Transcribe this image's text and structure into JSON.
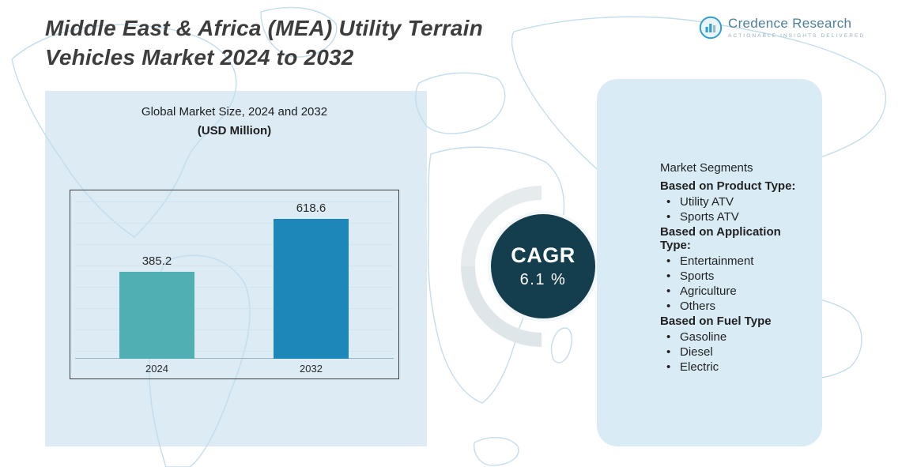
{
  "header": {
    "title_line1": "Middle East & Africa (MEA) Utility Terrain",
    "title_line2": "Vehicles Market 2024 to 2032",
    "logo": {
      "name": "Credence Research",
      "tagline": "Actionable Insights Delivered"
    }
  },
  "chart_heading": {
    "line1": "Global Market Size, 2024 and 2032",
    "line2": "(USD Million)"
  },
  "chart_data": {
    "type": "bar",
    "title": "Global Market Size, 2024 and 2032 (USD Million)",
    "categories": [
      "2024",
      "2032"
    ],
    "values": [
      385.2,
      618.6
    ],
    "data_labels": [
      "385.2",
      "618.6"
    ],
    "xlabel": "",
    "ylabel": "",
    "ylim": [
      0,
      700
    ],
    "grid": true,
    "legend": "none",
    "bar_colors": [
      "#4fafb3",
      "#1d87ba"
    ]
  },
  "cagr": {
    "label": "CAGR",
    "value": "6.1 %"
  },
  "segments": {
    "heading": "Market Segments",
    "groups": [
      {
        "title": "Based on Product Type:",
        "items": [
          "Utility ATV",
          "Sports ATV"
        ]
      },
      {
        "title": "Based on Application Type:",
        "items": [
          "Entertainment",
          "Sports",
          "Agriculture",
          "Others"
        ]
      },
      {
        "title": "Based on Fuel Type",
        "items": [
          "Gasoline",
          "Diesel",
          "Electric"
        ]
      }
    ]
  },
  "colors": {
    "bar_2024": "#4fafb3",
    "bar_2032": "#1d87ba",
    "cagr_circle": "#143e4d",
    "panel_bg": "#d9ecf5",
    "left_rect_bg": "#dcebf4",
    "map_stroke": "#c3dded",
    "accent_blue": "#2f9fd0"
  }
}
